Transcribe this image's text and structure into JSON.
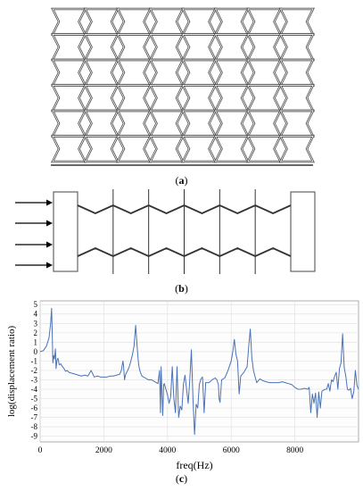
{
  "figure": {
    "panel_a": {
      "label": "a",
      "columns": 8,
      "rows": 6
    },
    "panel_b": {
      "label": "b",
      "cells": 6,
      "arrow_count": 4
    },
    "panel_c": {
      "label": "c"
    }
  },
  "chart_data": {
    "type": "line",
    "xlabel": "freq(Hz)",
    "ylabel": "log(displacement  ratio)",
    "xlim": [
      0,
      10000
    ],
    "ylim": [
      -9.6,
      5.4
    ],
    "x_ticks": [
      0,
      2000,
      4000,
      6000,
      8000
    ],
    "y_ticks": [
      5,
      4,
      3,
      2,
      1,
      0,
      -1,
      -2,
      -3,
      -4,
      -5,
      -6,
      -7,
      -8,
      -9
    ],
    "grid": true,
    "line_color": "#4a72b8",
    "series": [
      {
        "x": [
          0,
          100,
          200,
          280,
          330,
          360,
          380,
          400,
          420,
          450,
          480,
          500,
          530,
          560,
          600,
          650,
          700,
          750,
          800,
          850,
          900,
          1000,
          1100,
          1200,
          1300,
          1400,
          1500,
          1600,
          1700,
          1800,
          1900,
          2000,
          2100,
          2200,
          2300,
          2400,
          2500,
          2550,
          2600,
          2620,
          2650,
          2680,
          2700,
          2750,
          2800,
          2850,
          2900,
          2950,
          3000,
          3050,
          3080,
          3100,
          3130,
          3160,
          3200,
          3300,
          3400,
          3500,
          3600,
          3700,
          3750,
          3780,
          3800,
          3820,
          3850,
          3880,
          3900,
          3950,
          4000,
          4050,
          4100,
          4150,
          4200,
          4250,
          4300,
          4350,
          4400,
          4450,
          4500,
          4550,
          4600,
          4650,
          4700,
          4750,
          4800,
          4850,
          4900,
          4950,
          5000,
          5050,
          5100,
          5150,
          5200,
          5300,
          5400,
          5500,
          5550,
          5600,
          5620,
          5650,
          5700,
          5800,
          5900,
          6000,
          6050,
          6100,
          6150,
          6200,
          6250,
          6300,
          6400,
          6500,
          6550,
          6600,
          6650,
          6700,
          6800,
          6900,
          7000,
          7100,
          7200,
          7300,
          7400,
          7500,
          7600,
          7700,
          7800,
          7900,
          8000,
          8100,
          8200,
          8300,
          8400,
          8450,
          8500,
          8550,
          8600,
          8650,
          8700,
          8750,
          8800,
          8850,
          8900,
          8950,
          9000,
          9050,
          9100,
          9150,
          9200,
          9250,
          9300,
          9350,
          9400,
          9450,
          9500,
          9550,
          9600,
          9650,
          9700,
          9750,
          9800,
          9850,
          9900,
          9950,
          10000
        ],
        "y": [
          0,
          0.1,
          0.6,
          1.5,
          3.0,
          4.6,
          2.0,
          -1.2,
          -0.4,
          -0.8,
          0.3,
          -1.8,
          -0.9,
          -0.7,
          -1.4,
          -1.3,
          -1.6,
          -1.8,
          -2.1,
          -2.0,
          -2.2,
          -2.3,
          -2.4,
          -2.5,
          -2.6,
          -2.5,
          -2.6,
          -2.0,
          -2.7,
          -2.6,
          -2.7,
          -2.7,
          -2.7,
          -2.6,
          -2.6,
          -2.5,
          -2.4,
          -2.0,
          -1.0,
          -1.5,
          -3.0,
          -2.5,
          -2.3,
          -2.0,
          -1.6,
          -1.0,
          -0.3,
          0.6,
          2.8,
          0.4,
          -0.9,
          -1.5,
          -2.0,
          -2.3,
          -2.6,
          -2.8,
          -3.0,
          -3.0,
          -3.2,
          -3.4,
          -2.0,
          -6.5,
          -1.6,
          -3.8,
          -6.8,
          -3.5,
          -3.4,
          -4.0,
          -4.6,
          -5.5,
          -4.8,
          -1.6,
          -5.0,
          -6.5,
          -1.6,
          -7.0,
          -5.8,
          -6.2,
          -3.5,
          -2.5,
          -4.0,
          -5.5,
          -3.0,
          0.2,
          -5.0,
          -8.8,
          -5.6,
          -6.0,
          -3.5,
          -2.9,
          -2.7,
          -6.5,
          -3.3,
          -3.3,
          -3.0,
          -2.8,
          -3.0,
          -3.5,
          -5.0,
          -5.4,
          -3.0,
          -2.8,
          -2.0,
          -1.0,
          0.0,
          1.3,
          -0.3,
          -1.0,
          -4.5,
          -2.6,
          -2.2,
          -1.6,
          0.5,
          2.4,
          -0.7,
          -2.0,
          -3.3,
          -2.9,
          -3.1,
          -3.2,
          -3.3,
          -3.3,
          -3.3,
          -3.3,
          -3.2,
          -3.3,
          -3.4,
          -3.5,
          -3.8,
          -4.0,
          -4.0,
          -3.9,
          -4.0,
          -3.8,
          -6.5,
          -4.5,
          -5.5,
          -4.4,
          -7.0,
          -4.3,
          -6.0,
          -4.2,
          -4.1,
          -4.0,
          -4.0,
          -3.4,
          -4.2,
          -3.0,
          -3.2,
          -2.6,
          -2.2,
          -4.0,
          -1.8,
          -1.2,
          1.9,
          -1.7,
          -2.6,
          -4.0,
          -4.1,
          -3.9,
          -5.0,
          -4.3,
          -2.0,
          -3.6,
          -4.0
        ]
      }
    ]
  }
}
